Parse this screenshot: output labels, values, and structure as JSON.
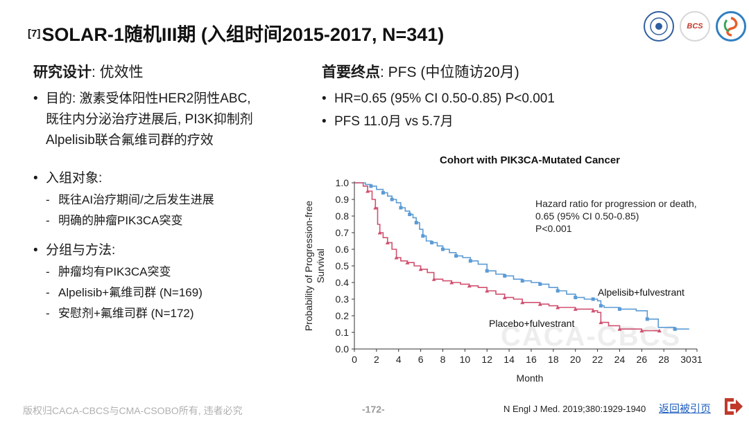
{
  "header": {
    "ref_number": "[7]",
    "title": "SOLAR-1随机III期 (入组时间2015-2017, N=341)"
  },
  "logos": {
    "left": "seal-logo",
    "middle": "BCS",
    "right": "caca-logo"
  },
  "design": {
    "heading_bold": "研究设计",
    "heading_rest": ": 优效性",
    "purpose_lines": [
      "目的: 激素受体阳性HER2阴性ABC,",
      "既往内分泌治疗进展后, PI3K抑制剂",
      "Alpelisib联合氟维司群的疗效"
    ],
    "population_label": "入组对象:",
    "population_items": [
      "既往AI治疗期间/之后发生进展",
      "明确的肿瘤PIK3CA突变"
    ],
    "groups_label": "分组与方法:",
    "groups_items": [
      "肿瘤均有PIK3CA突变",
      "Alpelisib+氟维司群 (N=169)",
      "安慰剂+氟维司群 (N=172)"
    ]
  },
  "endpoint": {
    "heading_bold": "首要终点",
    "heading_rest": ": PFS (中位随访20月)",
    "items": [
      "HR=0.65 (95% CI 0.50-0.85) P<0.001",
      "PFS 11.0月 vs 5.7月"
    ]
  },
  "footer": {
    "copyright": "版权归CACA-CBCS与CMA-CSOBO所有, 违者必究",
    "page": "-172-",
    "reference": "N Engl J Med. 2019;380:1929-1940",
    "back_link": "返回被引页",
    "watermark": "CACA-CBCS"
  },
  "chart_data": {
    "type": "line",
    "title": "Cohort with PIK3CA-Mutated Cancer",
    "xlabel": "Month",
    "ylabel_lines": [
      "Probability of Progression-free",
      "Survival"
    ],
    "xlim": [
      0,
      31
    ],
    "ylim": [
      0,
      1.0
    ],
    "xticks": [
      0,
      2,
      4,
      6,
      8,
      10,
      12,
      14,
      16,
      18,
      20,
      22,
      24,
      26,
      28,
      30,
      31
    ],
    "yticks": [
      "0.0",
      "0.1",
      "0.2",
      "0.3",
      "0.4",
      "0.5",
      "0.6",
      "0.7",
      "0.8",
      "0.9",
      "1.0"
    ],
    "annotation_lines": [
      "Hazard ratio for progression or death,",
      "0.65 (95% CI 0.50-0.85)",
      "P<0.001"
    ],
    "colors": {
      "alpelisib": "#5b9bd5",
      "placebo": "#d0506f"
    },
    "series": [
      {
        "name": "Alpelisib+fulvestrant",
        "x": [
          0,
          1.0,
          1.5,
          2.0,
          2.6,
          3.0,
          3.4,
          3.8,
          4.2,
          4.6,
          5.0,
          5.3,
          5.6,
          5.9,
          6.2,
          6.5,
          7.0,
          7.5,
          8.0,
          8.6,
          9.2,
          9.8,
          10.5,
          11.2,
          12.0,
          12.8,
          13.6,
          14.4,
          15.2,
          16.0,
          16.8,
          17.6,
          18.4,
          19.2,
          20.0,
          20.8,
          21.6,
          22.0,
          22.3,
          22.6,
          24.0,
          25.5,
          26.5,
          27.5,
          29.0,
          30.3
        ],
        "y": [
          1.0,
          0.99,
          0.98,
          0.96,
          0.94,
          0.92,
          0.9,
          0.88,
          0.85,
          0.83,
          0.81,
          0.79,
          0.76,
          0.72,
          0.68,
          0.65,
          0.64,
          0.62,
          0.6,
          0.58,
          0.56,
          0.55,
          0.53,
          0.51,
          0.47,
          0.45,
          0.44,
          0.42,
          0.41,
          0.4,
          0.39,
          0.37,
          0.35,
          0.33,
          0.31,
          0.3,
          0.3,
          0.29,
          0.26,
          0.25,
          0.24,
          0.23,
          0.18,
          0.13,
          0.12,
          0.12
        ]
      },
      {
        "name": "Placebo+fulvestrant",
        "x": [
          0,
          0.8,
          1.2,
          1.6,
          1.9,
          2.1,
          2.3,
          2.6,
          3.0,
          3.4,
          3.8,
          4.2,
          4.8,
          5.4,
          6.0,
          6.6,
          7.2,
          8.0,
          8.8,
          9.6,
          10.4,
          11.2,
          12.0,
          12.8,
          13.6,
          14.4,
          15.2,
          16.0,
          16.8,
          17.6,
          18.4,
          19.2,
          20.0,
          20.8,
          21.6,
          22.0,
          22.3,
          23.0,
          24.0,
          25.0,
          26.0,
          27.0,
          27.6
        ],
        "y": [
          1.0,
          0.98,
          0.95,
          0.9,
          0.85,
          0.75,
          0.7,
          0.67,
          0.64,
          0.6,
          0.55,
          0.53,
          0.52,
          0.5,
          0.48,
          0.46,
          0.42,
          0.41,
          0.4,
          0.39,
          0.38,
          0.37,
          0.35,
          0.33,
          0.31,
          0.3,
          0.28,
          0.28,
          0.27,
          0.26,
          0.25,
          0.25,
          0.24,
          0.24,
          0.23,
          0.22,
          0.16,
          0.14,
          0.12,
          0.12,
          0.11,
          0.11,
          0.11
        ]
      }
    ]
  }
}
